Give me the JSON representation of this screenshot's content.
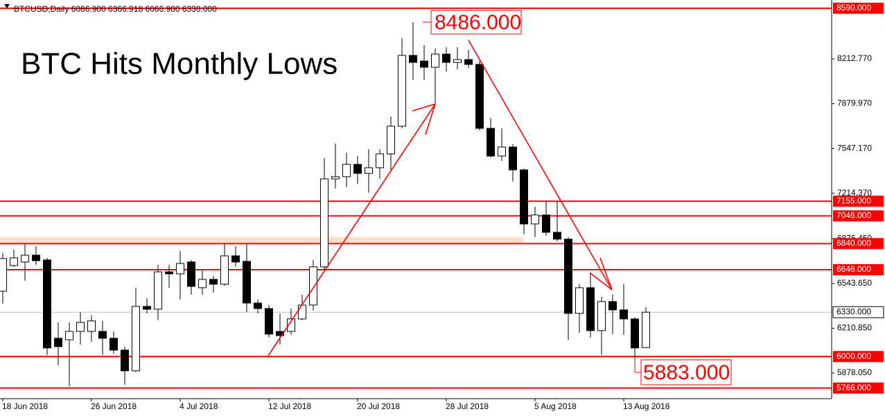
{
  "chart_data": {
    "type": "candlestick",
    "header": "BTCUSD,Daily  6066.900 6366.918 6066.900 6330.000",
    "title": "BTC Hits Monthly Lows",
    "categories": [
      "18 Jun 2018",
      null,
      null,
      null,
      null,
      null,
      null,
      null,
      "26 Jun 2018",
      null,
      null,
      null,
      null,
      null,
      null,
      null,
      "4 Jul 2018",
      null,
      null,
      null,
      null,
      null,
      null,
      null,
      "12 Jul 2018",
      null,
      null,
      null,
      null,
      null,
      null,
      null,
      "20 Jul 2018",
      null,
      null,
      null,
      null,
      null,
      null,
      null,
      "28 Jul 2018",
      null,
      null,
      null,
      null,
      null,
      null,
      null,
      "5 Aug 2018",
      null,
      null,
      null,
      null,
      null,
      null,
      null,
      "13 Aug 2018",
      null,
      null
    ],
    "open": [
      6486,
      6677,
      6703,
      6754,
      6718,
      6136,
      6125,
      6187,
      6187,
      6187,
      6136,
      6048,
      5894,
      6373,
      6352,
      6630,
      6615,
      6703,
      6512,
      6574,
      6538,
      6749,
      6708,
      6398,
      6357,
      6187,
      6187,
      6280,
      6383,
      6667,
      7321,
      7337,
      7429,
      7362,
      7404,
      7507,
      7713,
      8239,
      8197,
      8151,
      8249,
      8187,
      8208,
      8172,
      7697,
      7491,
      7558,
      7388,
      6986,
      7053,
      6924,
      6873,
      6321,
      6512,
      6193,
      6409,
      6347,
      6280,
      6066.9
    ],
    "high": [
      6770,
      6795,
      6837,
      6821,
      6734,
      6254,
      6254,
      6331,
      6306,
      6265,
      6187,
      6074,
      6512,
      6435,
      6682,
      6682,
      6785,
      6718,
      6641,
      6600,
      6837,
      6821,
      6837,
      6424,
      6383,
      6321,
      6357,
      6460,
      6718,
      7476,
      7584,
      7517,
      7491,
      7543,
      7543,
      7785,
      8367,
      8486,
      8316,
      8290,
      8300,
      8300,
      8280,
      8197,
      7775,
      7697,
      7579,
      7398,
      7115,
      7156,
      7156,
      6888,
      6538,
      6625,
      6445,
      6460,
      6538,
      6290,
      6366.918
    ],
    "low": [
      6393,
      6667,
      6564,
      6682,
      6012,
      5935,
      5780,
      6089,
      6110,
      6012,
      6022,
      5790,
      5885,
      6321,
      6270,
      6512,
      6424,
      6460,
      6460,
      6476,
      6527,
      6667,
      6331,
      6321,
      6141,
      6089,
      6161,
      6270,
      6342,
      6641,
      7249,
      7259,
      7285,
      7218,
      7321,
      7388,
      7697,
      8058,
      8058,
      7878,
      8120,
      8136,
      8146,
      7682,
      7481,
      7455,
      7301,
      6909,
      6888,
      6899,
      6857,
      6125,
      6177,
      6141,
      6012,
      6167,
      6161,
      5883,
      6066.9
    ],
    "close": [
      6729,
      6734,
      6754,
      6713,
      6064,
      6074,
      6187,
      6254,
      6265,
      6136,
      6048,
      5894,
      6373,
      6352,
      6630,
      6615,
      6692,
      6522,
      6574,
      6538,
      6749,
      6703,
      6398,
      6357,
      6167,
      6156,
      6280,
      6383,
      6667,
      7321,
      7337,
      7429,
      7362,
      7404,
      7507,
      7713,
      8239,
      8187,
      8151,
      8249,
      8187,
      8208,
      8172,
      7697,
      7491,
      7558,
      7388,
      6986,
      7053,
      6924,
      6873,
      6321,
      6512,
      6193,
      6409,
      6347,
      6280,
      6064,
      6330
    ],
    "up_color": "#ffffff",
    "down_color": "#000000",
    "ylim": [
      5687,
      8651
    ],
    "yticks": [
      {
        "value": 8212.77,
        "label": "8212.770"
      },
      {
        "value": 7879.97,
        "label": "7879.970"
      },
      {
        "value": 7547.17,
        "label": "7547.170"
      },
      {
        "value": 7214.37,
        "label": "7214.370"
      },
      {
        "value": 6876.45,
        "label": "6876.450"
      },
      {
        "value": 6543.65,
        "label": "6543.650"
      },
      {
        "value": 6210.85,
        "label": "6210.850"
      },
      {
        "value": 5878.05,
        "label": "5878.050"
      }
    ],
    "levels": [
      {
        "value": 8590,
        "label": "8590.000"
      },
      {
        "value": 7155,
        "label": "7155.000"
      },
      {
        "value": 7046,
        "label": "7046.000"
      },
      {
        "value": 6840,
        "label": "6840.000"
      },
      {
        "value": 6646,
        "label": "6646.000"
      },
      {
        "value": 6000,
        "label": "6000.000"
      },
      {
        "value": 5766,
        "label": "5766.000"
      }
    ],
    "level_color": "#ff0000",
    "bid": {
      "value": 6330,
      "label": "6330.000"
    },
    "zone": {
      "ylim": [
        6840,
        6890
      ],
      "color": "#fde0c5"
    },
    "annotations": [
      {
        "value": 8486,
        "label": "8486.000"
      },
      {
        "value": 5883,
        "label": "5883.000"
      }
    ]
  }
}
